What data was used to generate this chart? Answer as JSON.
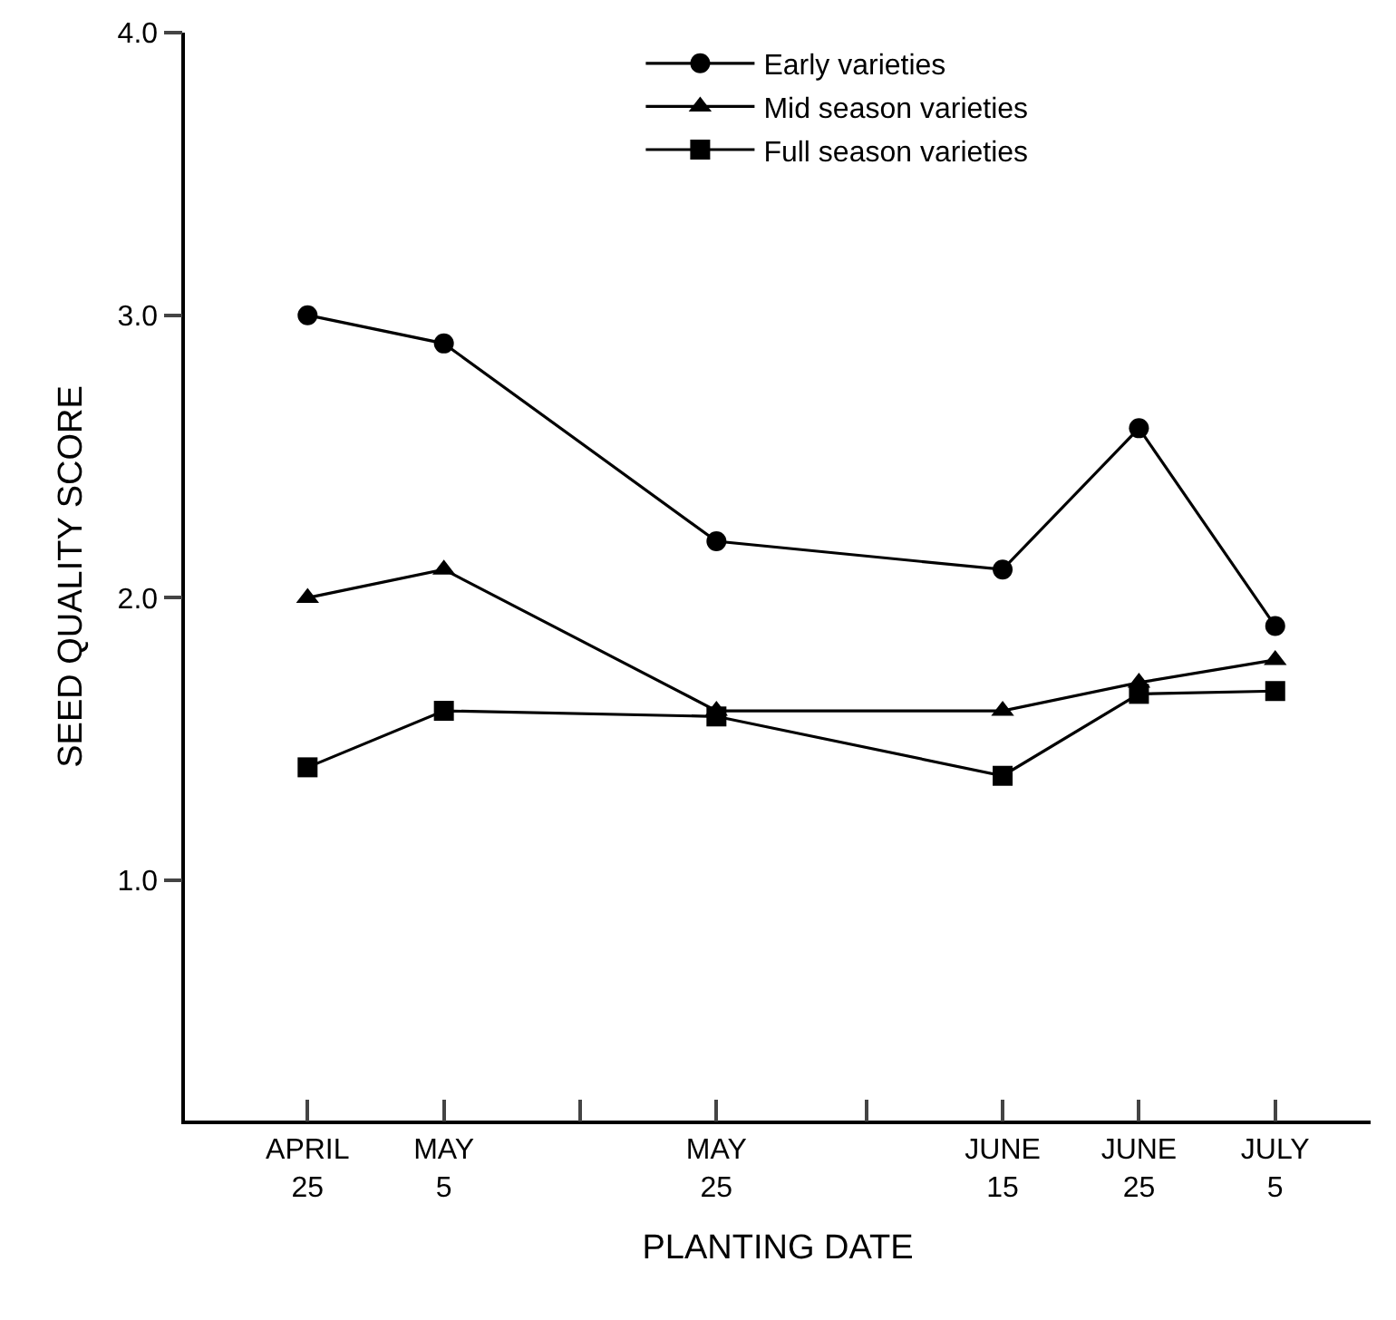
{
  "chart_data": {
    "type": "line",
    "xlabel": "PLANTING DATE",
    "ylabel": "SEED QUALITY SCORE",
    "x": [
      "--04-25",
      "--05-05",
      "--05-25",
      "--06-15",
      "--06-25",
      "--07-05"
    ],
    "series": [
      {
        "name": "Early varieties",
        "color": "#000000",
        "marker": "circle",
        "values": [
          3.0,
          2.9,
          2.2,
          2.1,
          2.6,
          1.9
        ]
      },
      {
        "name": "Mid season varieties",
        "color": "#000000",
        "marker": "triangle",
        "values": [
          2.0,
          2.1,
          1.6,
          1.6,
          1.7,
          1.78
        ]
      },
      {
        "name": "Full season varieties",
        "color": "#000000",
        "marker": "square",
        "values": [
          1.4,
          1.6,
          1.58,
          1.37,
          1.66,
          1.67
        ]
      }
    ],
    "xlim": [
      "--04-16",
      "--07-12"
    ],
    "xticks": [
      {
        "value": "--04-25",
        "label": "APRIL\n25"
      },
      {
        "value": "--05-05",
        "label": "MAY\n5"
      },
      {
        "value": "--05-15",
        "label": null
      },
      {
        "value": "--05-25",
        "label": "MAY\n25"
      },
      {
        "value": "--06-05",
        "label": null
      },
      {
        "value": "--06-15",
        "label": "JUNE\n15"
      },
      {
        "value": "--06-25",
        "label": "JUNE\n25"
      },
      {
        "value": "--07-05",
        "label": "JULY\n5"
      }
    ],
    "ylim": [
      0.15,
      4.0
    ],
    "yticks": [
      {
        "value": 1,
        "label": "1.0"
      },
      {
        "value": 2,
        "label": "2.0"
      },
      {
        "value": 3,
        "label": "3.0"
      },
      {
        "value": 4,
        "label": "4.0"
      }
    ],
    "grid": false,
    "legend": "top",
    "line_style": "solid"
  }
}
